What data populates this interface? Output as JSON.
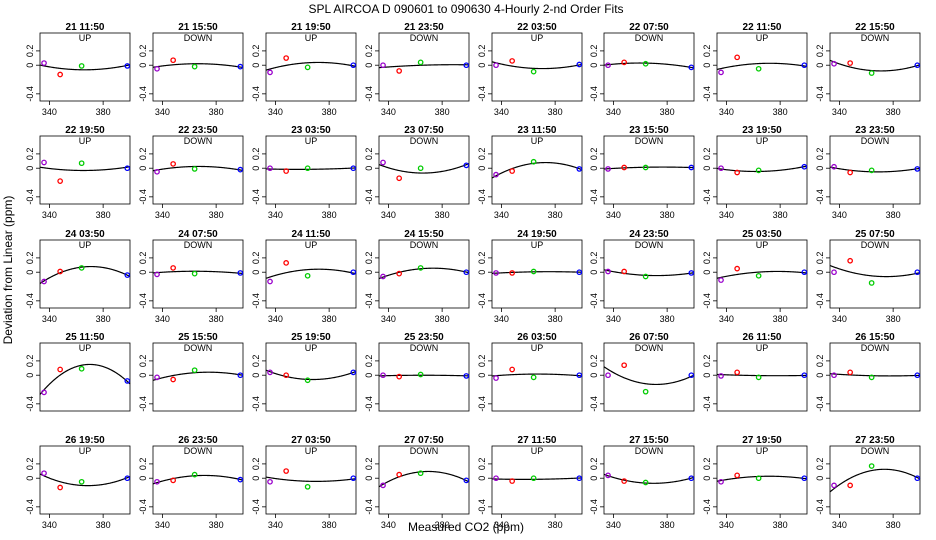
{
  "figure": {
    "title": "SPL   AIRCOA D    090601 to 090630   4-Hourly 2-nd Order Fits",
    "xlabel": "Measured CO2 (ppm)",
    "ylabel": "Deviation from Linear (ppm)"
  },
  "chart_data": {
    "type": "scatter",
    "layout": "small-multiples 5 rows x 8 columns",
    "xlim": [
      333,
      400
    ],
    "ylim": [
      -0.5,
      0.45
    ],
    "x_ticks": [
      340,
      380
    ],
    "y_ticks": [
      -0.4,
      0.0,
      0.2
    ],
    "y_tick_labels": [
      "-0.4",
      "0",
      "0.2"
    ],
    "x_ticks_labeled_on_row": [
      1,
      2,
      3,
      5
    ],
    "std_x": [
      336,
      348,
      364,
      398
    ],
    "std_colors": [
      "#9900cc",
      "#ff0000",
      "#00cc00",
      "#0000ff"
    ],
    "panels": [
      {
        "title": "21 11:50",
        "dir": "UP",
        "y": [
          0.03,
          -0.13,
          -0.01,
          -0.01
        ]
      },
      {
        "title": "21 15:50",
        "dir": "DOWN",
        "y": [
          -0.05,
          0.07,
          -0.02,
          -0.02
        ]
      },
      {
        "title": "21 19:50",
        "dir": "UP",
        "y": [
          -0.1,
          0.1,
          -0.03,
          0.0
        ]
      },
      {
        "title": "21 23:50",
        "dir": "DOWN",
        "y": [
          0.0,
          -0.08,
          0.04,
          0.0
        ]
      },
      {
        "title": "22 03:50",
        "dir": "UP",
        "y": [
          0.0,
          0.06,
          -0.09,
          0.01
        ]
      },
      {
        "title": "22 07:50",
        "dir": "DOWN",
        "y": [
          0.0,
          0.04,
          0.02,
          -0.03
        ]
      },
      {
        "title": "22 11:50",
        "dir": "UP",
        "y": [
          -0.1,
          0.11,
          -0.05,
          0.0
        ]
      },
      {
        "title": "22 15:50",
        "dir": "DOWN",
        "y": [
          0.02,
          0.03,
          -0.11,
          0.0
        ]
      },
      {
        "title": "22 19:50",
        "dir": "UP",
        "y": [
          0.08,
          -0.18,
          0.07,
          0.0
        ]
      },
      {
        "title": "22 23:50",
        "dir": "DOWN",
        "y": [
          -0.05,
          0.06,
          -0.01,
          -0.02
        ]
      },
      {
        "title": "23 03:50",
        "dir": "UP",
        "y": [
          0.0,
          -0.04,
          0.0,
          0.0
        ]
      },
      {
        "title": "23 07:50",
        "dir": "DOWN",
        "y": [
          0.08,
          -0.14,
          0.0,
          0.04
        ]
      },
      {
        "title": "23 11:50",
        "dir": "UP",
        "y": [
          -0.09,
          -0.04,
          0.09,
          -0.01
        ]
      },
      {
        "title": "23 15:50",
        "dir": "DOWN",
        "y": [
          -0.01,
          0.01,
          0.01,
          0.01
        ]
      },
      {
        "title": "23 19:50",
        "dir": "UP",
        "y": [
          0.0,
          -0.06,
          -0.03,
          0.02
        ]
      },
      {
        "title": "23 23:50",
        "dir": "DOWN",
        "y": [
          0.02,
          -0.06,
          -0.03,
          -0.01
        ]
      },
      {
        "title": "24 03:50",
        "dir": "UP",
        "y": [
          -0.13,
          0.01,
          0.06,
          -0.04
        ]
      },
      {
        "title": "24 07:50",
        "dir": "DOWN",
        "y": [
          -0.03,
          0.06,
          -0.02,
          -0.01
        ]
      },
      {
        "title": "24 11:50",
        "dir": "UP",
        "y": [
          -0.13,
          0.13,
          -0.05,
          0.0
        ]
      },
      {
        "title": "24 15:50",
        "dir": "DOWN",
        "y": [
          -0.06,
          -0.02,
          0.06,
          0.0
        ]
      },
      {
        "title": "24 19:50",
        "dir": "UP",
        "y": [
          -0.01,
          -0.01,
          0.01,
          0.0
        ]
      },
      {
        "title": "24 23:50",
        "dir": "DOWN",
        "y": [
          0.01,
          0.01,
          -0.06,
          -0.01
        ]
      },
      {
        "title": "25 03:50",
        "dir": "UP",
        "y": [
          -0.11,
          0.05,
          -0.05,
          0.0
        ]
      },
      {
        "title": "25 07:50",
        "dir": "DOWN",
        "y": [
          0.0,
          0.16,
          -0.15,
          0.0
        ]
      },
      {
        "title": "25 11:50",
        "dir": "UP",
        "y": [
          -0.24,
          0.08,
          0.09,
          -0.08
        ]
      },
      {
        "title": "25 15:50",
        "dir": "DOWN",
        "y": [
          -0.03,
          -0.06,
          0.07,
          0.0
        ]
      },
      {
        "title": "25 19:50",
        "dir": "UP",
        "y": [
          0.04,
          0.0,
          -0.07,
          0.04
        ]
      },
      {
        "title": "25 23:50",
        "dir": "DOWN",
        "y": [
          0.0,
          -0.02,
          0.01,
          -0.01
        ]
      },
      {
        "title": "26 03:50",
        "dir": "UP",
        "y": [
          -0.04,
          0.08,
          -0.03,
          0.0
        ]
      },
      {
        "title": "26 07:50",
        "dir": "DOWN",
        "y": [
          0.0,
          0.14,
          -0.23,
          0.0
        ]
      },
      {
        "title": "26 11:50",
        "dir": "UP",
        "y": [
          -0.01,
          0.04,
          -0.03,
          0.0
        ]
      },
      {
        "title": "26 15:50",
        "dir": "DOWN",
        "y": [
          0.0,
          0.04,
          -0.03,
          0.0
        ]
      },
      {
        "title": "26 19:50",
        "dir": "UP",
        "y": [
          0.07,
          -0.13,
          -0.05,
          0.0
        ]
      },
      {
        "title": "26 23:50",
        "dir": "DOWN",
        "y": [
          -0.05,
          -0.03,
          0.05,
          -0.02
        ]
      },
      {
        "title": "27 03:50",
        "dir": "UP",
        "y": [
          -0.05,
          0.1,
          -0.12,
          0.0
        ]
      },
      {
        "title": "27 07:50",
        "dir": "DOWN",
        "y": [
          -0.1,
          0.05,
          0.07,
          -0.03
        ]
      },
      {
        "title": "27 11:50",
        "dir": "UP",
        "y": [
          0.0,
          -0.04,
          0.0,
          0.0
        ]
      },
      {
        "title": "27 15:50",
        "dir": "DOWN",
        "y": [
          0.04,
          -0.04,
          -0.06,
          0.0
        ]
      },
      {
        "title": "27 19:50",
        "dir": "UP",
        "y": [
          -0.05,
          0.04,
          0.0,
          0.0
        ]
      },
      {
        "title": "27 23:50",
        "dir": "DOWN",
        "y": [
          -0.1,
          -0.1,
          0.17,
          0.0
        ]
      }
    ]
  }
}
